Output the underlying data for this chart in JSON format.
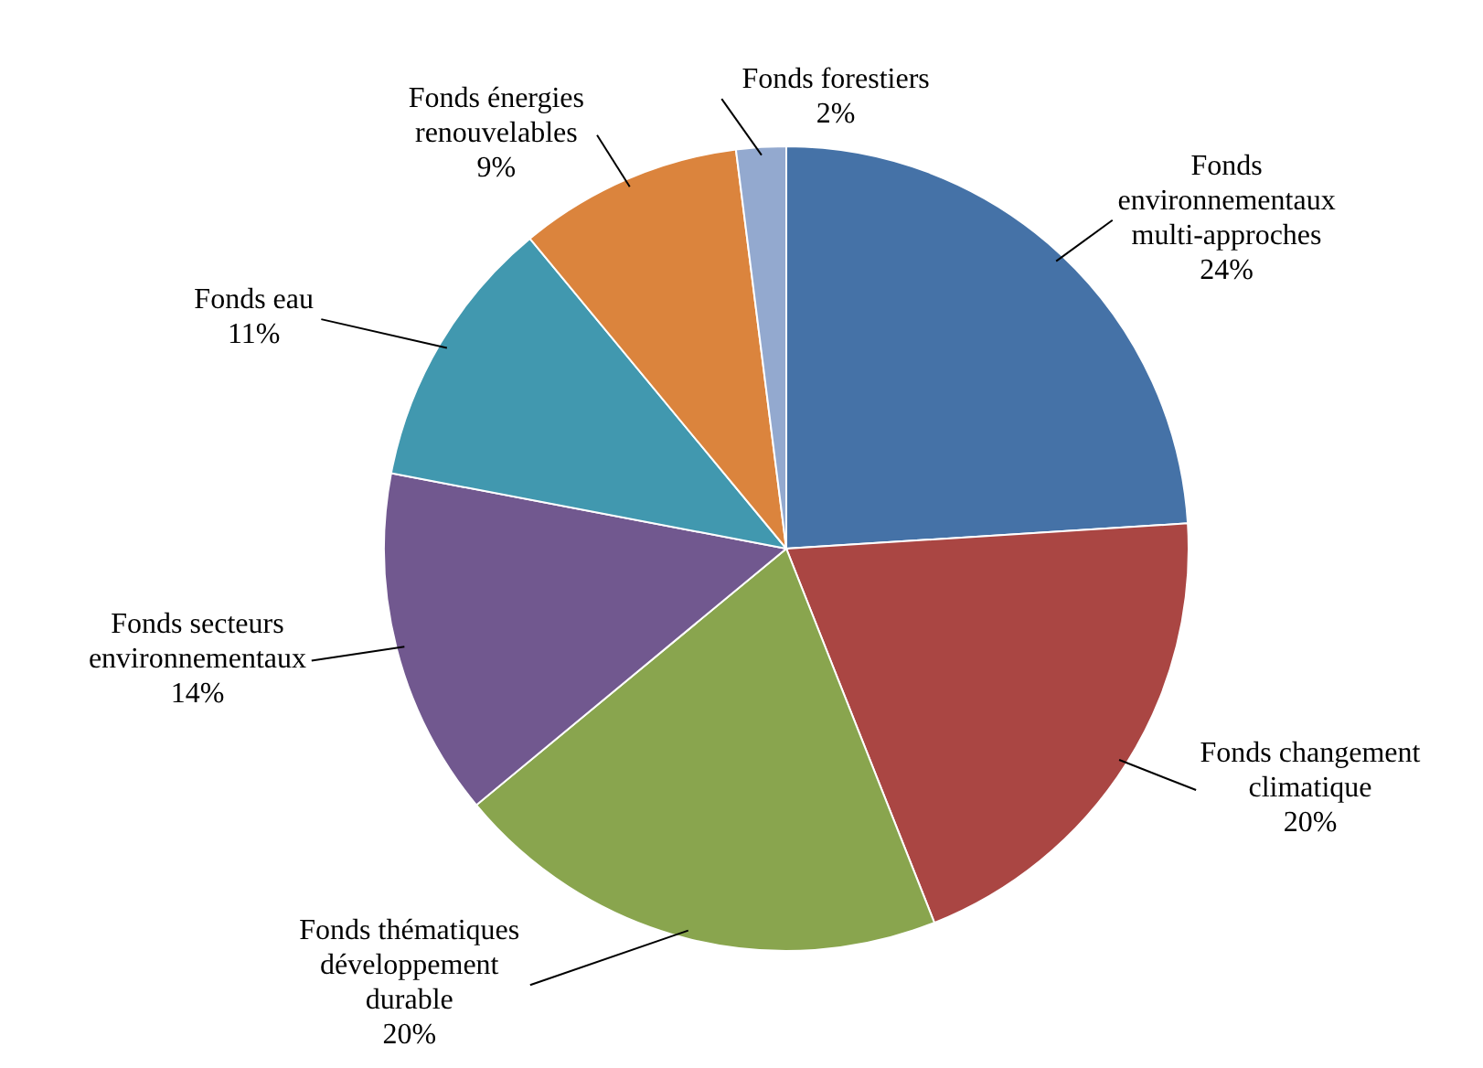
{
  "chart_data": {
    "type": "pie",
    "categories": [
      "Fonds environnementaux multi-approches",
      "Fonds changement climatique",
      "Fonds thématiques développement durable",
      "Fonds secteurs environnementaux",
      "Fonds eau",
      "Fonds énergies renouvelables",
      "Fonds forestiers"
    ],
    "values": [
      24,
      20,
      20,
      14,
      11,
      9,
      2
    ],
    "value_labels": [
      "24%",
      "20%",
      "20%",
      "14%",
      "11%",
      "9%",
      "2%"
    ],
    "colors": [
      "#4572a7",
      "#aa4643",
      "#89a54e",
      "#71588f",
      "#4198af",
      "#db843d",
      "#93a9cf"
    ]
  }
}
